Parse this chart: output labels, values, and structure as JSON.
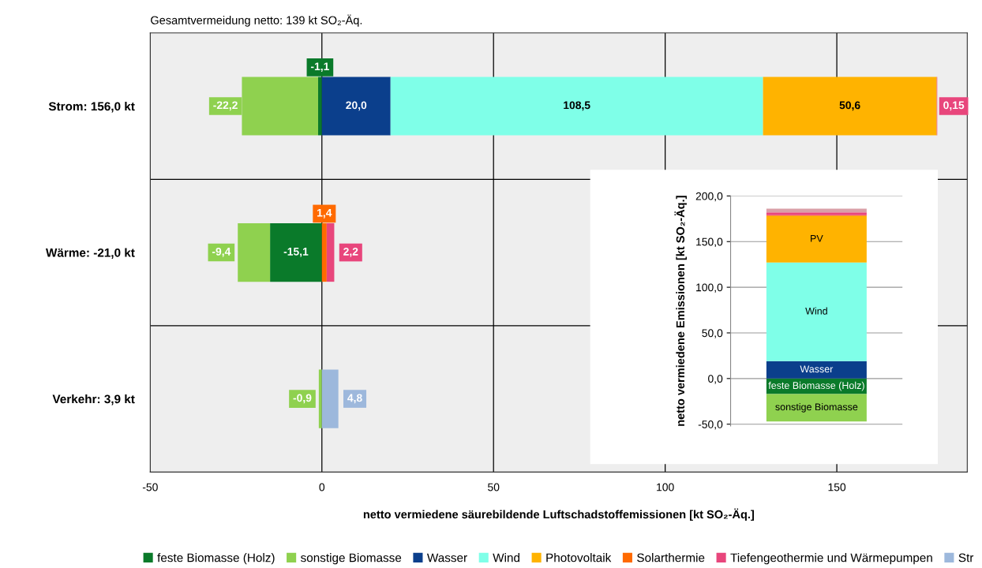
{
  "chart_data": [
    {
      "type": "bar",
      "orientation": "horizontal",
      "stacked": true,
      "title": "Gesamtvermeidung netto: 139 kt SO₂-Äq.",
      "xlabel": "netto vermiedene säurebildende Luftschadstoffemissionen [kt SO₂-Äq.]",
      "categories": [
        "Strom: 156,0 kt",
        "Wärme: -21,0 kt",
        "Verkehr: 3,9 kt"
      ],
      "series": [
        {
          "name": "feste Biomasse (Holz)",
          "color": "#0a7a2a",
          "values": [
            -1.1,
            -15.1,
            null
          ],
          "value_labels": [
            "-1,1",
            "-15,1",
            null
          ]
        },
        {
          "name": "sonstige Biomasse",
          "color": "#8fd14f",
          "values": [
            -22.2,
            -9.4,
            -0.9
          ],
          "value_labels": [
            "-22,2",
            "-9,4",
            "-0,9"
          ]
        },
        {
          "name": "Wasser",
          "color": "#0b3f8c",
          "values": [
            20.0,
            null,
            null
          ],
          "value_labels": [
            "20,0",
            null,
            null
          ]
        },
        {
          "name": "Wind",
          "color": "#7fffe8",
          "values": [
            108.5,
            null,
            null
          ],
          "value_labels": [
            "108,5",
            null,
            null
          ]
        },
        {
          "name": "Photovoltaik",
          "color": "#ffb300",
          "values": [
            50.6,
            null,
            null
          ],
          "value_labels": [
            "50,6",
            null,
            null
          ]
        },
        {
          "name": "Solarthermie",
          "color": "#ff6a00",
          "values": [
            null,
            1.4,
            null
          ],
          "value_labels": [
            null,
            "1,4",
            null
          ]
        },
        {
          "name": "Tiefengeothermie und Wärmepumpen",
          "color": "#e8467c",
          "values": [
            0.15,
            2.2,
            null
          ],
          "value_labels": [
            "0,15",
            "2,2",
            null
          ]
        },
        {
          "name": "Str",
          "color": "#9db8dc",
          "values": [
            null,
            null,
            4.8
          ],
          "value_labels": [
            null,
            null,
            "4,8"
          ]
        }
      ],
      "xlim": [
        -50,
        188
      ],
      "xticks": [
        -50,
        0,
        50,
        100,
        150
      ],
      "grid": true,
      "legend": "bottom"
    },
    {
      "type": "bar",
      "stacked": true,
      "ylabel": "netto vermiedene Emissionen [kt SO₂-Äq.]",
      "categories": [
        null
      ],
      "series": [
        {
          "name": "feste Biomasse (Holz)",
          "color": "#0a7a2a",
          "values": [
            -17
          ]
        },
        {
          "name": "sonstige Biomasse",
          "color": "#8fd14f",
          "values": [
            -30
          ]
        },
        {
          "name": "Wasser",
          "color": "#0b3f8c",
          "values": [
            19
          ]
        },
        {
          "name": "Wind",
          "color": "#7fffe8",
          "values": [
            108
          ]
        },
        {
          "name": "PV",
          "color": "#ffb300",
          "values": [
            51
          ]
        },
        {
          "color": "#ff6a00",
          "values": [
            1
          ]
        },
        {
          "color": "#e8467c",
          "values": [
            3
          ]
        },
        {
          "color": "#d9a0a8",
          "values": [
            4
          ]
        }
      ],
      "ylim": [
        -52,
        200
      ],
      "yticks": [
        {
          "value": -50,
          "label": "-50,0"
        },
        {
          "value": 0,
          "label": "0,0"
        },
        {
          "value": 50,
          "label": "50,0"
        },
        {
          "value": 100,
          "label": "100,0"
        },
        {
          "value": 150,
          "label": "150,0"
        },
        {
          "value": 200,
          "label": "200,0"
        }
      ],
      "grid": "y"
    }
  ]
}
